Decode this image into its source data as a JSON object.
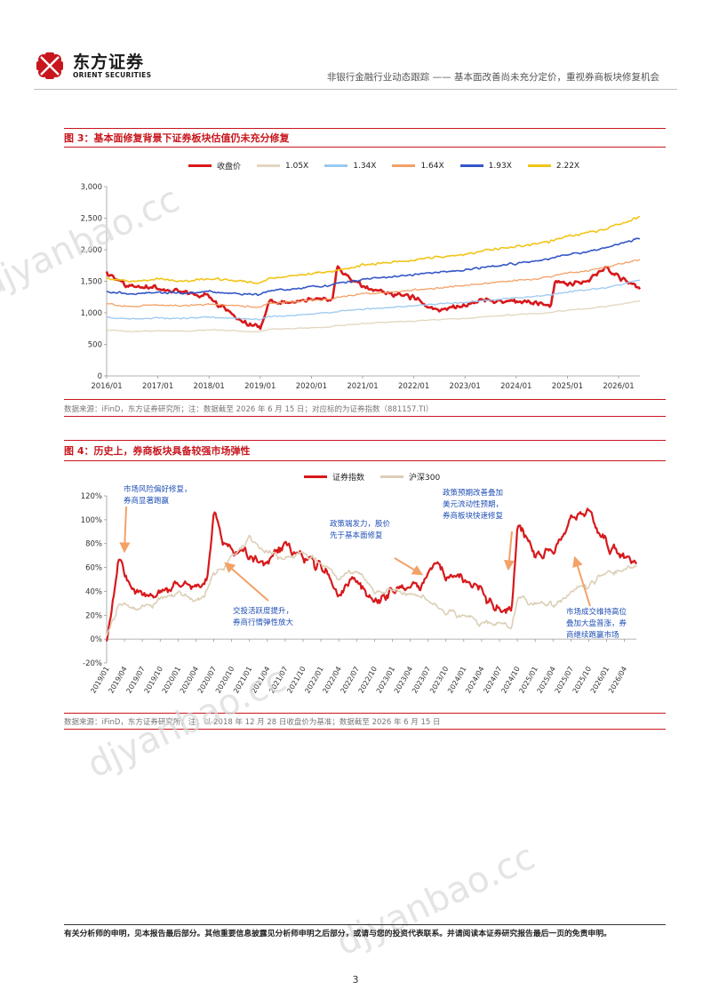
{
  "header": {
    "logo_cn": "东方证券",
    "logo_en": "ORIENT SECURITIES",
    "report_title": "非银行金融行业动态跟踪 —— 基本面改善尚未充分定价，重视券商板块修复机会",
    "brand_color": "#c8161d"
  },
  "figure3": {
    "title": "图 3：基本面修复背景下证券板块估值仍未充分修复",
    "source": "数据来源：iFinD，东方证券研究所；注：数据截至 2026 年 6 月 15 日；对应标的为证券指数（881157.TI）"
  },
  "figure4": {
    "title": "图 4：历史上，券商板块具备较强市场弹性",
    "source": "数据来源：iFinD，东方证券研究所；注：以 2018 年 12 月 28 日收盘价为基准；数据截至 2026 年 6 月 15 日",
    "annotations": [
      [
        "市场风险偏好修复，",
        "券商显著跑赢"
      ],
      [
        "交投活跃度提升，",
        "券商行情弹性放大"
      ],
      [
        "政策端发力，股价",
        "先于基本面修复"
      ],
      [
        "政策预期改善叠加",
        "美元流动性预期，",
        "券商板块快速修复"
      ],
      [
        "市场成交维持高位",
        "叠加大盘普涨，券",
        "商继续跑赢市场"
      ]
    ]
  },
  "chart_data": [
    {
      "type": "line",
      "title": "",
      "xlabel": "",
      "ylabel": "",
      "ylim": [
        0,
        3000
      ],
      "yticks": [
        "0",
        "500",
        "1,000",
        "1,500",
        "2,000",
        "2,500",
        "3,000"
      ],
      "xticks": [
        "2016/01",
        "2017/01",
        "2018/01",
        "2019/01",
        "2020/01",
        "2021/01",
        "2022/01",
        "2023/01",
        "2024/01",
        "2025/01",
        "2026/01"
      ],
      "legend": "top",
      "grid": false,
      "x": [
        "2016/01",
        "2016/06",
        "2017/01",
        "2017/06",
        "2018/01",
        "2018/06",
        "2018/10",
        "2019/01",
        "2019/03",
        "2019/09",
        "2020/01",
        "2020/06",
        "2020/07",
        "2020/10",
        "2021/01",
        "2021/06",
        "2022/01",
        "2022/06",
        "2023/01",
        "2023/06",
        "2024/01",
        "2024/06",
        "2024/09",
        "2024/10",
        "2025/01",
        "2025/06",
        "2025/10",
        "2026/01",
        "2026/06"
      ],
      "series": [
        {
          "name": "收盘价",
          "color": "#d7191c",
          "values": [
            1640,
            1420,
            1400,
            1330,
            1250,
            1000,
            820,
            760,
            1180,
            1160,
            1230,
            1200,
            1720,
            1550,
            1430,
            1320,
            1250,
            1050,
            1120,
            1220,
            1180,
            1150,
            1100,
            1480,
            1450,
            1520,
            1700,
            1580,
            1390
          ]
        },
        {
          "name": "1.05X",
          "color": "#e3d5be",
          "values": [
            730,
            700,
            720,
            710,
            730,
            720,
            700,
            700,
            740,
            750,
            760,
            780,
            800,
            810,
            830,
            850,
            870,
            890,
            910,
            940,
            970,
            990,
            1000,
            1020,
            1040,
            1070,
            1100,
            1130,
            1190
          ]
        },
        {
          "name": "1.34X",
          "color": "#9cc9f0",
          "values": [
            930,
            900,
            920,
            910,
            930,
            920,
            900,
            895,
            940,
            960,
            980,
            1000,
            1020,
            1035,
            1060,
            1080,
            1110,
            1140,
            1165,
            1200,
            1240,
            1260,
            1280,
            1300,
            1330,
            1370,
            1400,
            1440,
            1520
          ]
        },
        {
          "name": "1.64X",
          "color": "#f2a167",
          "values": [
            1140,
            1100,
            1130,
            1110,
            1140,
            1120,
            1100,
            1095,
            1150,
            1170,
            1200,
            1220,
            1250,
            1270,
            1300,
            1320,
            1360,
            1390,
            1430,
            1470,
            1510,
            1540,
            1570,
            1590,
            1630,
            1670,
            1720,
            1770,
            1850
          ]
        },
        {
          "name": "1.93X",
          "color": "#3456c8",
          "values": [
            1340,
            1300,
            1330,
            1310,
            1340,
            1320,
            1290,
            1290,
            1350,
            1380,
            1410,
            1440,
            1470,
            1490,
            1530,
            1560,
            1600,
            1640,
            1680,
            1730,
            1780,
            1820,
            1850,
            1880,
            1920,
            1970,
            2030,
            2090,
            2180
          ]
        },
        {
          "name": "2.22X",
          "color": "#f2c418",
          "values": [
            1540,
            1500,
            1530,
            1500,
            1540,
            1520,
            1490,
            1480,
            1550,
            1580,
            1620,
            1650,
            1690,
            1710,
            1760,
            1790,
            1840,
            1880,
            1930,
            1990,
            2050,
            2090,
            2130,
            2160,
            2210,
            2270,
            2330,
            2400,
            2520
          ]
        }
      ]
    },
    {
      "type": "line",
      "title": "",
      "xlabel": "",
      "ylabel": "",
      "ylim": [
        -20,
        120
      ],
      "yticks": [
        "-20%",
        "0%",
        "20%",
        "40%",
        "60%",
        "80%",
        "100%",
        "120%"
      ],
      "xticks": [
        "2019/01",
        "2019/04",
        "2019/07",
        "2019/10",
        "2020/01",
        "2020/04",
        "2020/07",
        "2020/10",
        "2021/01",
        "2021/04",
        "2021/07",
        "2021/10",
        "2022/01",
        "2022/04",
        "2022/07",
        "2022/10",
        "2023/01",
        "2023/04",
        "2023/07",
        "2023/10",
        "2024/01",
        "2024/04",
        "2024/07",
        "2024/10",
        "2025/01",
        "2025/04",
        "2025/07",
        "2025/10",
        "2026/01",
        "2026/04"
      ],
      "legend": "top",
      "grid": false,
      "x": [
        "2019/01",
        "2019/03",
        "2019/04",
        "2019/06",
        "2019/09",
        "2020/01",
        "2020/04",
        "2020/06",
        "2020/07",
        "2020/09",
        "2021/01",
        "2021/04",
        "2021/07",
        "2021/10",
        "2022/01",
        "2022/04",
        "2022/07",
        "2022/10",
        "2023/01",
        "2023/06",
        "2023/08",
        "2023/10",
        "2024/01",
        "2024/04",
        "2024/07",
        "2024/09",
        "2024/10",
        "2025/01",
        "2025/04",
        "2025/07",
        "2025/10",
        "2026/01",
        "2026/04",
        "2026/06"
      ],
      "series": [
        {
          "name": "证券指数",
          "color": "#d7191c",
          "values": [
            0,
            68,
            55,
            40,
            35,
            48,
            42,
            50,
            105,
            78,
            70,
            65,
            80,
            68,
            62,
            40,
            52,
            30,
            42,
            45,
            70,
            55,
            50,
            40,
            22,
            25,
            95,
            70,
            75,
            100,
            105,
            80,
            68,
            65
          ]
        },
        {
          "name": "沪深300",
          "color": "#dccfb7",
          "values": [
            0,
            30,
            28,
            25,
            30,
            38,
            32,
            40,
            55,
            62,
            85,
            72,
            68,
            72,
            65,
            50,
            58,
            38,
            42,
            35,
            30,
            22,
            20,
            12,
            15,
            8,
            35,
            30,
            28,
            40,
            45,
            55,
            58,
            62
          ]
        }
      ]
    }
  ]
}
